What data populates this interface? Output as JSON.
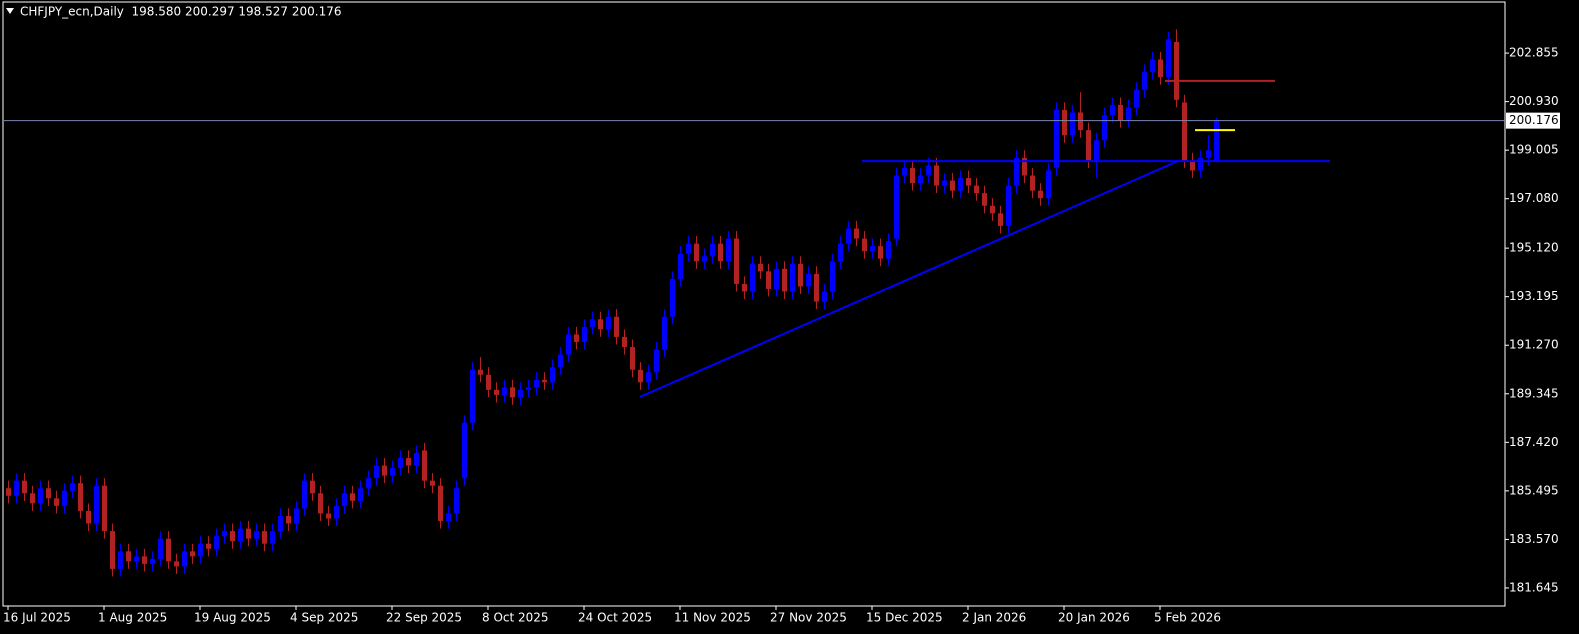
{
  "chart_data": {
    "type": "candlestick",
    "title": "CHFJPY_ecn,Daily  198.580 200.297 198.527 200.176",
    "categories": [
      "16 Jul 2025",
      null,
      null,
      null,
      null,
      null,
      null,
      null,
      null,
      null,
      null,
      null,
      "1 Aug 2025",
      null,
      null,
      null,
      null,
      null,
      null,
      null,
      null,
      null,
      null,
      null,
      "19 Aug 2025",
      null,
      null,
      null,
      null,
      null,
      null,
      null,
      null,
      null,
      null,
      null,
      "4 Sep 2025",
      null,
      null,
      null,
      null,
      null,
      null,
      null,
      null,
      null,
      null,
      null,
      "22 Sep 2025",
      null,
      null,
      null,
      null,
      null,
      null,
      null,
      null,
      null,
      null,
      null,
      "8 Oct 2025",
      null,
      null,
      null,
      null,
      null,
      null,
      null,
      null,
      null,
      null,
      null,
      "24 Oct 2025",
      null,
      null,
      null,
      null,
      null,
      null,
      null,
      null,
      null,
      null,
      null,
      "11 Nov 2025",
      null,
      null,
      null,
      null,
      null,
      null,
      null,
      null,
      null,
      null,
      null,
      "27 Nov 2025",
      null,
      null,
      null,
      null,
      null,
      null,
      null,
      null,
      null,
      null,
      null,
      "15 Dec 2025",
      null,
      null,
      null,
      null,
      null,
      null,
      null,
      null,
      null,
      null,
      null,
      "2 Jan 2026",
      null,
      null,
      null,
      null,
      null,
      null,
      null,
      null,
      null,
      null,
      null,
      "20 Jan 2026",
      null,
      null,
      null,
      null,
      null,
      null,
      null,
      null,
      null,
      null,
      null,
      "5 Feb 2026",
      null,
      null,
      null,
      null,
      null,
      null,
      null
    ],
    "ohlc": [
      [
        185.6,
        185.9,
        185.0,
        185.3
      ],
      [
        185.3,
        186.2,
        185.0,
        185.9
      ],
      [
        185.9,
        186.2,
        185.1,
        185.4
      ],
      [
        185.4,
        185.7,
        184.7,
        185.0
      ],
      [
        185.0,
        185.9,
        184.7,
        185.6
      ],
      [
        185.6,
        185.9,
        184.9,
        185.2
      ],
      [
        185.2,
        185.5,
        184.6,
        184.9
      ],
      [
        184.9,
        185.8,
        184.6,
        185.5
      ],
      [
        185.5,
        186.1,
        185.2,
        185.8
      ],
      [
        185.8,
        186.1,
        184.4,
        184.7
      ],
      [
        184.7,
        185.0,
        183.9,
        184.2
      ],
      [
        184.2,
        186.0,
        183.9,
        185.7
      ],
      [
        185.7,
        186.0,
        183.6,
        183.9
      ],
      [
        183.9,
        184.2,
        182.1,
        182.4
      ],
      [
        182.4,
        183.4,
        182.1,
        183.1
      ],
      [
        183.1,
        183.4,
        182.4,
        182.7
      ],
      [
        182.7,
        183.2,
        182.4,
        182.9
      ],
      [
        182.9,
        183.2,
        182.3,
        182.6
      ],
      [
        182.6,
        183.1,
        182.3,
        182.8
      ],
      [
        182.8,
        183.9,
        182.5,
        183.6
      ],
      [
        183.6,
        183.9,
        182.4,
        182.7
      ],
      [
        182.7,
        183.0,
        182.2,
        182.5
      ],
      [
        182.5,
        183.4,
        182.2,
        183.1
      ],
      [
        183.1,
        183.4,
        182.6,
        182.9
      ],
      [
        182.9,
        183.7,
        182.6,
        183.4
      ],
      [
        183.4,
        183.7,
        182.9,
        183.2
      ],
      [
        183.2,
        184.0,
        182.9,
        183.7
      ],
      [
        183.7,
        184.2,
        183.4,
        183.9
      ],
      [
        183.9,
        184.2,
        183.2,
        183.5
      ],
      [
        183.5,
        184.3,
        183.2,
        184.0
      ],
      [
        184.0,
        184.3,
        183.3,
        183.6
      ],
      [
        183.6,
        184.2,
        183.3,
        183.9
      ],
      [
        183.9,
        184.2,
        183.1,
        183.4
      ],
      [
        183.4,
        184.2,
        183.1,
        183.9
      ],
      [
        183.9,
        184.8,
        183.6,
        184.5
      ],
      [
        184.5,
        184.8,
        183.9,
        184.2
      ],
      [
        184.2,
        185.1,
        183.9,
        184.8
      ],
      [
        184.8,
        186.2,
        184.5,
        185.9
      ],
      [
        185.9,
        186.2,
        185.1,
        185.4
      ],
      [
        185.4,
        185.7,
        184.3,
        184.6
      ],
      [
        184.6,
        184.9,
        184.1,
        184.4
      ],
      [
        184.4,
        185.2,
        184.1,
        184.9
      ],
      [
        184.9,
        185.7,
        184.6,
        185.4
      ],
      [
        185.4,
        185.7,
        184.8,
        185.1
      ],
      [
        185.1,
        185.9,
        184.8,
        185.6
      ],
      [
        185.6,
        186.3,
        185.3,
        186.0
      ],
      [
        186.0,
        186.8,
        185.7,
        186.5
      ],
      [
        186.5,
        186.8,
        185.8,
        186.1
      ],
      [
        186.1,
        186.7,
        185.8,
        186.4
      ],
      [
        186.4,
        187.1,
        186.1,
        186.8
      ],
      [
        186.8,
        187.1,
        186.2,
        186.5
      ],
      [
        186.5,
        187.3,
        186.2,
        187.0
      ],
      [
        187.1,
        187.4,
        185.6,
        185.9
      ],
      [
        185.9,
        186.2,
        185.4,
        185.7
      ],
      [
        185.7,
        186.0,
        184.0,
        184.3
      ],
      [
        184.3,
        184.9,
        184.0,
        184.6
      ],
      [
        184.6,
        185.9,
        184.3,
        185.6
      ],
      [
        186.0,
        188.5,
        185.7,
        188.2
      ],
      [
        188.2,
        190.6,
        187.9,
        190.3
      ],
      [
        190.3,
        190.8,
        189.8,
        190.1
      ],
      [
        190.1,
        190.4,
        189.2,
        189.5
      ],
      [
        189.5,
        189.8,
        189.0,
        189.3
      ],
      [
        189.3,
        189.9,
        189.0,
        189.6
      ],
      [
        189.6,
        189.9,
        188.9,
        189.2
      ],
      [
        189.2,
        189.8,
        188.9,
        189.5
      ],
      [
        189.5,
        189.9,
        189.2,
        189.6
      ],
      [
        189.6,
        190.2,
        189.3,
        189.9
      ],
      [
        189.9,
        190.2,
        189.5,
        189.8
      ],
      [
        189.8,
        190.7,
        189.5,
        190.4
      ],
      [
        190.4,
        191.2,
        190.1,
        190.9
      ],
      [
        190.9,
        192.0,
        190.6,
        191.7
      ],
      [
        191.7,
        192.0,
        191.1,
        191.4
      ],
      [
        191.4,
        192.3,
        191.1,
        192.0
      ],
      [
        192.0,
        192.6,
        191.7,
        192.3
      ],
      [
        192.3,
        192.6,
        191.6,
        191.9
      ],
      [
        191.9,
        192.7,
        191.6,
        192.4
      ],
      [
        192.4,
        192.7,
        191.3,
        191.6
      ],
      [
        191.6,
        191.9,
        190.9,
        191.2
      ],
      [
        191.2,
        191.5,
        190.0,
        190.3
      ],
      [
        190.3,
        190.6,
        189.5,
        189.8
      ],
      [
        189.8,
        190.5,
        189.5,
        190.2
      ],
      [
        190.2,
        191.4,
        189.9,
        191.1
      ],
      [
        191.1,
        192.7,
        190.8,
        192.4
      ],
      [
        192.4,
        194.2,
        192.1,
        193.9
      ],
      [
        193.9,
        195.2,
        193.6,
        194.9
      ],
      [
        194.9,
        195.6,
        194.6,
        195.3
      ],
      [
        195.3,
        195.6,
        194.3,
        194.6
      ],
      [
        194.6,
        195.1,
        194.3,
        194.8
      ],
      [
        194.8,
        195.6,
        194.5,
        195.3
      ],
      [
        195.3,
        195.6,
        194.3,
        194.6
      ],
      [
        194.6,
        195.8,
        194.3,
        195.5
      ],
      [
        195.5,
        195.8,
        193.4,
        193.7
      ],
      [
        193.7,
        194.0,
        193.1,
        193.4
      ],
      [
        193.4,
        194.8,
        193.1,
        194.5
      ],
      [
        194.5,
        194.8,
        193.9,
        194.2
      ],
      [
        194.2,
        194.5,
        193.2,
        193.5
      ],
      [
        193.5,
        194.6,
        193.2,
        194.3
      ],
      [
        194.3,
        194.6,
        193.1,
        193.4
      ],
      [
        193.4,
        194.8,
        193.1,
        194.5
      ],
      [
        194.5,
        194.8,
        193.3,
        193.6
      ],
      [
        193.6,
        194.4,
        193.3,
        194.1
      ],
      [
        194.1,
        194.4,
        192.7,
        193.0
      ],
      [
        193.0,
        193.7,
        192.7,
        193.4
      ],
      [
        193.4,
        194.9,
        193.1,
        194.6
      ],
      [
        194.6,
        195.6,
        194.3,
        195.3
      ],
      [
        195.3,
        196.2,
        195.0,
        195.9
      ],
      [
        195.9,
        196.2,
        195.2,
        195.5
      ],
      [
        195.5,
        195.8,
        194.7,
        195.0
      ],
      [
        195.0,
        195.5,
        194.7,
        195.2
      ],
      [
        195.2,
        195.5,
        194.4,
        194.7
      ],
      [
        194.7,
        195.7,
        194.4,
        195.4
      ],
      [
        195.5,
        198.3,
        195.2,
        198.0
      ],
      [
        198.0,
        198.6,
        197.7,
        198.3
      ],
      [
        198.3,
        198.6,
        197.4,
        197.7
      ],
      [
        197.7,
        198.3,
        197.4,
        198.0
      ],
      [
        198.0,
        198.7,
        197.7,
        198.4
      ],
      [
        198.4,
        198.7,
        197.3,
        197.6
      ],
      [
        197.6,
        198.1,
        197.3,
        197.8
      ],
      [
        197.8,
        198.1,
        197.1,
        197.4
      ],
      [
        197.4,
        198.2,
        197.1,
        197.9
      ],
      [
        197.9,
        198.2,
        197.3,
        197.6
      ],
      [
        197.6,
        197.9,
        197.0,
        197.3
      ],
      [
        197.3,
        197.6,
        196.5,
        196.8
      ],
      [
        196.8,
        197.1,
        196.2,
        196.5
      ],
      [
        196.5,
        196.8,
        195.7,
        196.0
      ],
      [
        196.0,
        197.9,
        195.7,
        197.6
      ],
      [
        197.6,
        199.0,
        197.3,
        198.7
      ],
      [
        198.7,
        199.0,
        197.7,
        198.0
      ],
      [
        198.0,
        198.3,
        197.1,
        197.4
      ],
      [
        197.4,
        197.7,
        196.8,
        197.1
      ],
      [
        197.1,
        198.5,
        196.8,
        198.2
      ],
      [
        198.3,
        200.9,
        198.0,
        200.6
      ],
      [
        200.6,
        200.9,
        199.3,
        199.6
      ],
      [
        199.6,
        200.8,
        199.3,
        200.5
      ],
      [
        200.5,
        201.3,
        199.5,
        199.8
      ],
      [
        199.8,
        200.1,
        198.3,
        198.6
      ],
      [
        198.6,
        199.7,
        197.9,
        199.4
      ],
      [
        199.4,
        200.7,
        199.1,
        200.4
      ],
      [
        200.4,
        201.1,
        200.1,
        200.8
      ],
      [
        200.8,
        201.1,
        199.9,
        200.2
      ],
      [
        200.2,
        201.0,
        199.9,
        200.7
      ],
      [
        200.7,
        201.7,
        200.4,
        201.4
      ],
      [
        201.4,
        202.4,
        201.1,
        202.1
      ],
      [
        202.1,
        202.9,
        201.8,
        202.6
      ],
      [
        202.6,
        202.9,
        201.6,
        201.9
      ],
      [
        201.9,
        203.7,
        201.6,
        203.4
      ],
      [
        203.3,
        203.8,
        200.7,
        201.0
      ],
      [
        200.9,
        201.2,
        198.3,
        198.6
      ],
      [
        198.6,
        198.9,
        197.9,
        198.2
      ],
      [
        198.2,
        199.0,
        197.9,
        198.7
      ],
      [
        198.7,
        199.6,
        198.4,
        199.0
      ],
      [
        198.58,
        200.297,
        198.527,
        200.176
      ]
    ],
    "up_color": "#0000ff",
    "down_color": "#b22222",
    "ylim": [
      180.93,
      204.88
    ],
    "yticks": [
      181.645,
      {
        "value": 183.57,
        "label": "183.570"
      },
      185.495,
      {
        "value": 187.42,
        "label": "187.420"
      },
      189.345,
      {
        "value": 191.27,
        "label": "191.270"
      },
      193.195,
      {
        "value": 195.12,
        "label": "195.120"
      },
      {
        "value": 197.08,
        "label": "197.080"
      },
      199.005,
      {
        "value": 200.93,
        "label": "200.930"
      },
      202.855
    ],
    "last_price": 200.176,
    "drawings": [
      {
        "color": "#0000ff",
        "y": [
          189.22,
          198.61
        ]
      },
      {
        "color": "#0000ff",
        "y": [
          198.57,
          198.57
        ]
      },
      {
        "color": "#b22222",
        "y": [
          201.75,
          201.75
        ]
      },
      {
        "color": "#ffff00",
        "y": [
          199.8,
          199.8
        ]
      }
    ]
  }
}
